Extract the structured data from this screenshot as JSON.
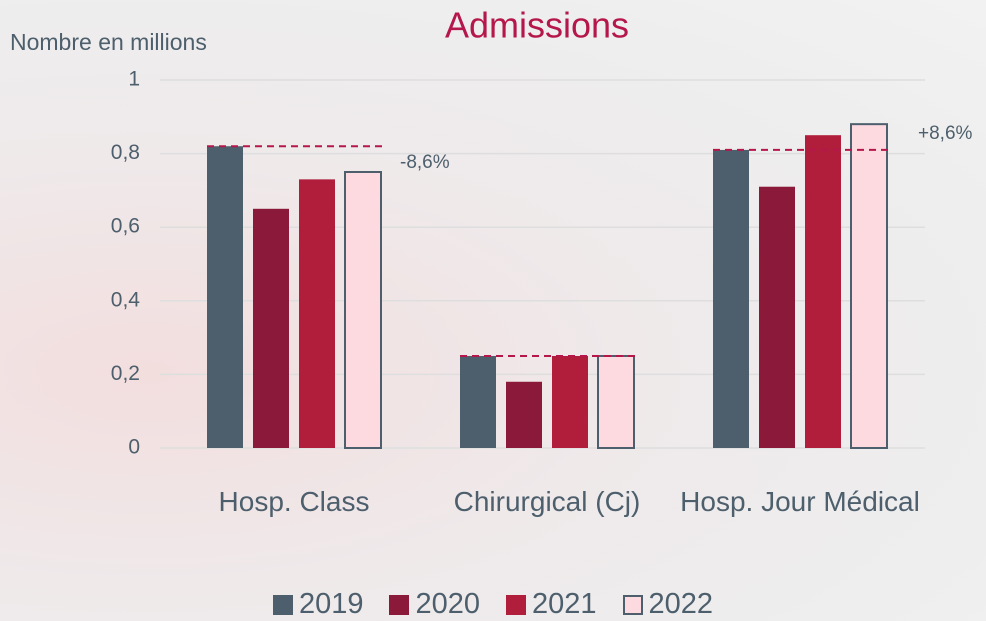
{
  "chart_data": {
    "type": "bar",
    "title": "Admissions",
    "y_label": "Nombre en millions",
    "categories": [
      "Hosp. Class",
      "Chirurgical (Cj)",
      "Hosp. Jour Médical"
    ],
    "series": [
      {
        "name": "2019",
        "color": "#4d5f6c",
        "values": [
          0.82,
          0.25,
          0.81
        ]
      },
      {
        "name": "2020",
        "color": "#8b1a3a",
        "values": [
          0.65,
          0.18,
          0.71
        ]
      },
      {
        "name": "2021",
        "color": "#b01e3c",
        "values": [
          0.73,
          0.25,
          0.85
        ]
      },
      {
        "name": "2022",
        "color": "#fdd9e0",
        "values": [
          0.75,
          0.25,
          0.88
        ]
      }
    ],
    "annotations": [
      "-8,6%",
      "+8,6%"
    ],
    "reference_line_color": "#b5174a",
    "ylim": [
      0,
      1
    ],
    "yticks": [
      0,
      {
        "value": 0.2,
        "label": "0,2"
      },
      {
        "value": 0.4,
        "label": "0,4"
      },
      {
        "value": 0.6,
        "label": "0,6"
      },
      {
        "value": 0.8,
        "label": "0,8"
      },
      1
    ],
    "grid": true
  }
}
